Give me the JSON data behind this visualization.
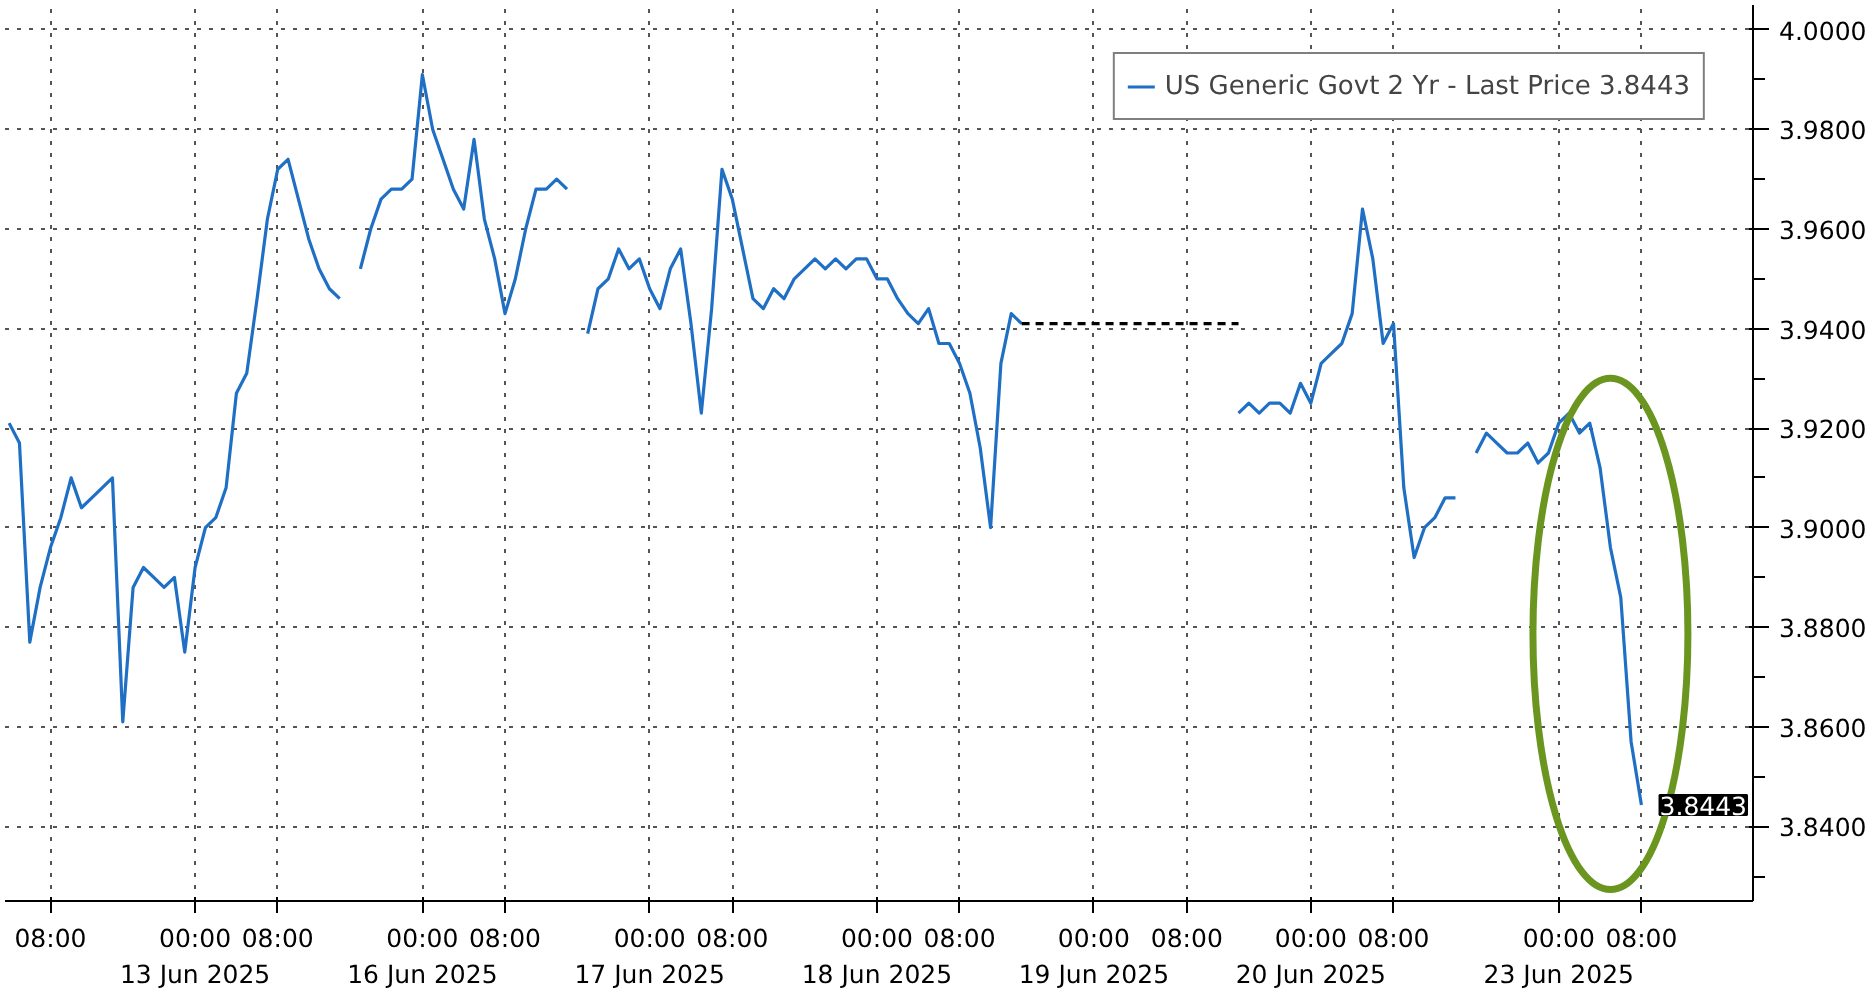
{
  "chart_data": {
    "type": "line",
    "categories": [
      null,
      null,
      null,
      null,
      "08:00",
      null,
      null,
      null,
      null,
      null,
      null,
      null,
      null,
      null,
      null,
      null,
      null,
      null,
      "00:00\n13 Jun 2025",
      null,
      null,
      null,
      null,
      null,
      null,
      null,
      "08:00",
      null,
      null,
      null,
      null,
      null,
      null,
      null,
      null,
      null,
      null,
      null,
      null,
      null,
      "00:00\n16 Jun 2025",
      null,
      null,
      null,
      null,
      null,
      null,
      null,
      "08:00",
      null,
      null,
      null,
      null,
      null,
      null,
      null,
      null,
      null,
      null,
      null,
      null,
      null,
      "00:00\n17 Jun 2025",
      null,
      null,
      null,
      null,
      null,
      null,
      null,
      "08:00",
      null,
      null,
      null,
      null,
      null,
      null,
      null,
      null,
      null,
      null,
      null,
      null,
      null,
      "00:00\n18 Jun 2025",
      null,
      null,
      null,
      null,
      null,
      null,
      null,
      "08:00",
      null,
      null,
      null,
      null,
      null,
      null,
      null,
      null,
      null,
      null,
      null,
      null,
      "00:00\n19 Jun 2025",
      null,
      null,
      null,
      null,
      null,
      null,
      null,
      null,
      "08:00",
      null,
      null,
      null,
      null,
      null,
      null,
      null,
      null,
      null,
      null,
      null,
      "00:00\n20 Jun 2025",
      null,
      null,
      null,
      null,
      null,
      null,
      null,
      "08:00",
      null,
      null,
      null,
      null,
      null,
      null,
      null,
      null,
      null,
      null,
      null,
      null,
      null,
      null,
      null,
      "00:00\n23 Jun 2025",
      null,
      null,
      null,
      null,
      null,
      null,
      null,
      "08:00",
      null,
      null,
      null,
      null,
      null,
      null,
      null,
      null,
      null,
      null
    ],
    "ylim": [
      3.825,
      4.005
    ],
    "yticks": [
      {
        "value": 3.83,
        "label": null
      },
      {
        "value": 3.84,
        "label": "3.8400"
      },
      {
        "value": 3.85,
        "label": null
      },
      {
        "value": 3.86,
        "label": "3.8600"
      },
      {
        "value": 3.87,
        "label": null
      },
      {
        "value": 3.88,
        "label": "3.8800"
      },
      {
        "value": 3.89,
        "label": null
      },
      {
        "value": 3.9,
        "label": "3.9000"
      },
      {
        "value": 3.91,
        "label": null
      },
      {
        "value": 3.92,
        "label": "3.9200"
      },
      {
        "value": 3.93,
        "label": null
      },
      {
        "value": 3.94,
        "label": "3.9400"
      },
      {
        "value": 3.95,
        "label": null
      },
      {
        "value": 3.96,
        "label": "3.9600"
      },
      {
        "value": 3.97,
        "label": null
      },
      {
        "value": 3.98,
        "label": "3.9800"
      },
      {
        "value": 3.99,
        "label": null
      },
      {
        "value": 4.0,
        "label": "4.0000"
      }
    ],
    "grid": true,
    "legend": "top right",
    "series": [
      {
        "name": "US Generic Govt 2 Yr - Last Price 3.8443",
        "color": "#1f6fc5",
        "values": [
          3.921,
          3.917,
          3.877,
          3.888,
          3.896,
          3.902,
          3.91,
          3.904,
          3.906,
          3.908,
          3.91,
          3.861,
          3.888,
          3.892,
          3.89,
          3.888,
          3.89,
          3.875,
          3.892,
          3.9,
          3.902,
          3.908,
          3.927,
          3.931,
          3.946,
          3.962,
          3.972,
          3.974,
          3.966,
          3.958,
          3.952,
          3.948,
          3.946,
          null,
          3.952,
          3.96,
          3.966,
          3.968,
          3.968,
          3.97,
          3.991,
          3.98,
          3.974,
          3.968,
          3.964,
          3.978,
          3.962,
          3.954,
          3.943,
          3.95,
          3.96,
          3.968,
          3.968,
          3.97,
          3.968,
          null,
          3.939,
          3.948,
          3.95,
          3.956,
          3.952,
          3.954,
          3.948,
          3.944,
          3.952,
          3.956,
          3.941,
          3.923,
          3.944,
          3.972,
          3.966,
          3.956,
          3.946,
          3.944,
          3.948,
          3.946,
          3.95,
          3.952,
          3.954,
          3.952,
          3.954,
          3.952,
          3.954,
          3.954,
          3.95,
          3.95,
          3.946,
          3.943,
          3.941,
          3.944,
          3.937,
          3.937,
          3.933,
          3.927,
          3.916,
          3.9,
          3.933,
          3.943,
          3.941,
          null,
          null,
          null,
          null,
          null,
          null,
          null,
          null,
          null,
          null,
          null,
          null,
          null,
          null,
          null,
          null,
          null,
          null,
          null,
          null,
          3.923,
          3.925,
          3.923,
          3.925,
          3.925,
          3.923,
          3.929,
          3.925,
          3.933,
          3.935,
          3.937,
          3.943,
          3.964,
          3.954,
          3.937,
          3.941,
          3.908,
          3.894,
          3.9,
          3.902,
          3.906,
          3.906,
          null,
          3.915,
          3.919,
          3.917,
          3.915,
          3.915,
          3.917,
          3.913,
          3.915,
          3.921,
          3.923,
          3.919,
          3.921,
          3.912,
          3.896,
          3.886,
          3.857,
          3.8443,
          null,
          null,
          null,
          null,
          null,
          null,
          null,
          null,
          null,
          null
        ],
        "value_labels": [
          null,
          null,
          null,
          null,
          null,
          null,
          null,
          null,
          null,
          null,
          null,
          null,
          null,
          null,
          null,
          null,
          null,
          null,
          null,
          null,
          null,
          null,
          null,
          null,
          null,
          null,
          null,
          null,
          null,
          null,
          null,
          null,
          null,
          null,
          null,
          null,
          null,
          null,
          null,
          null,
          null,
          null,
          null,
          null,
          null,
          null,
          null,
          null,
          null,
          null,
          null,
          null,
          null,
          null,
          null,
          null,
          null,
          null,
          null,
          null,
          null,
          null,
          null,
          null,
          null,
          null,
          null,
          null,
          null,
          null,
          null,
          null,
          null,
          null,
          null,
          null,
          null,
          null,
          null,
          null,
          null,
          null,
          null,
          null,
          null,
          null,
          null,
          null,
          null,
          null,
          null,
          null,
          null,
          null,
          null,
          null,
          null,
          null,
          null,
          null,
          null,
          null,
          null,
          null,
          null,
          null,
          null,
          null,
          null,
          null,
          null,
          null,
          null,
          null,
          null,
          null,
          null,
          null,
          null,
          null,
          null,
          null,
          null,
          null,
          null,
          null,
          null,
          null,
          null,
          null,
          null,
          null,
          null,
          null,
          null,
          null,
          null,
          null,
          null,
          null,
          null,
          null,
          null,
          null,
          null,
          null,
          null,
          null,
          null,
          null,
          null,
          null,
          null,
          null,
          null,
          null,
          null,
          null,
          "3.8443",
          null,
          null,
          null,
          null,
          null,
          null,
          null,
          null,
          null,
          null
        ]
      },
      {
        "color": "#000000",
        "line_style": "dashed",
        "values": [
          null,
          null,
          null,
          null,
          null,
          null,
          null,
          null,
          null,
          null,
          null,
          null,
          null,
          null,
          null,
          null,
          null,
          null,
          null,
          null,
          null,
          null,
          null,
          null,
          null,
          null,
          null,
          null,
          null,
          null,
          null,
          null,
          null,
          null,
          null,
          null,
          null,
          null,
          null,
          null,
          null,
          null,
          null,
          null,
          null,
          null,
          null,
          null,
          null,
          null,
          null,
          null,
          null,
          null,
          null,
          null,
          null,
          null,
          null,
          null,
          null,
          null,
          null,
          null,
          null,
          null,
          null,
          null,
          null,
          null,
          null,
          null,
          null,
          null,
          null,
          null,
          null,
          null,
          null,
          null,
          null,
          null,
          null,
          null,
          null,
          null,
          null,
          null,
          null,
          null,
          null,
          null,
          null,
          null,
          null,
          null,
          null,
          null,
          3.941,
          3.941,
          3.941,
          3.941,
          3.941,
          3.941,
          3.941,
          3.941,
          3.941,
          3.941,
          3.941,
          3.941,
          3.941,
          3.941,
          3.941,
          3.941,
          3.941,
          3.941,
          3.941,
          3.941,
          3.941,
          3.941,
          null,
          null,
          null,
          null,
          null,
          null,
          null,
          null,
          null,
          null,
          null,
          null,
          null,
          null,
          null,
          null,
          null,
          null,
          null,
          null,
          null,
          null,
          null,
          null,
          null,
          null,
          null,
          null,
          null,
          null,
          null,
          null,
          null,
          null,
          null,
          null,
          null,
          null,
          null,
          null,
          null,
          null,
          null,
          null,
          null,
          null,
          null,
          null,
          null
        ]
      }
    ]
  }
}
